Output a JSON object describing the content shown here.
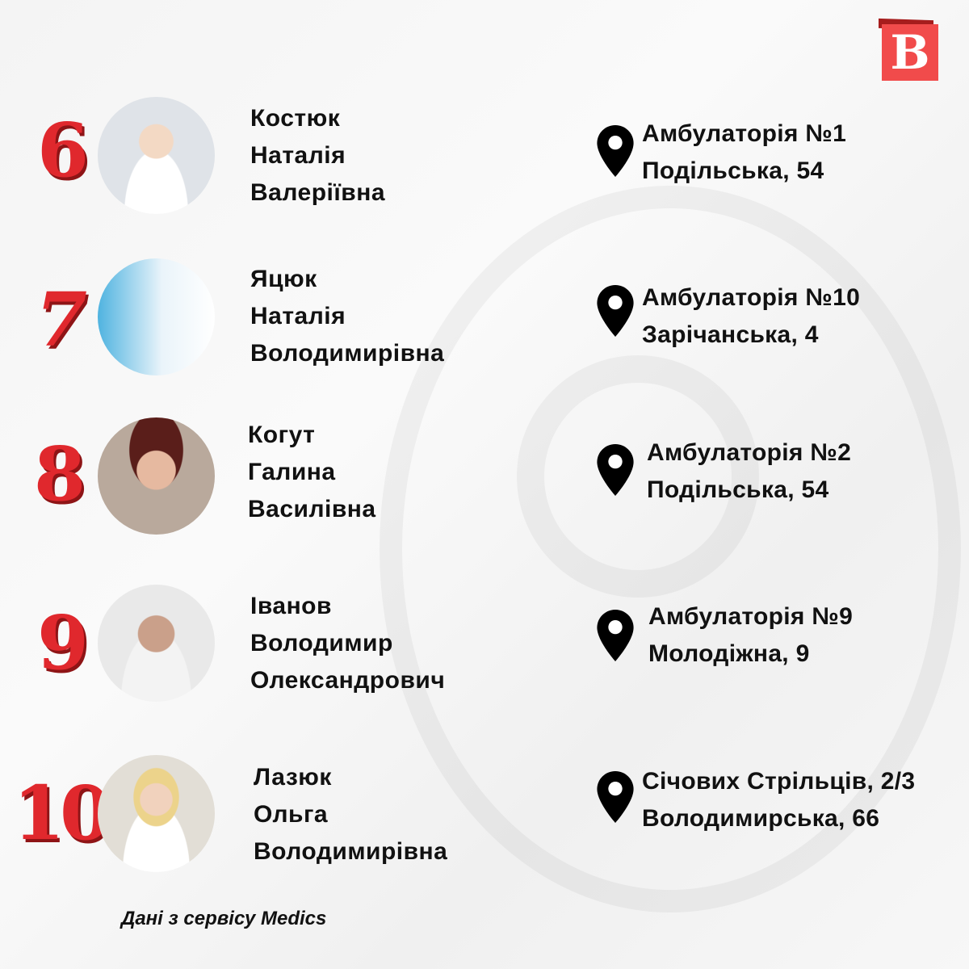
{
  "logo": {
    "letter": "B",
    "colors": {
      "front": "#f14b4b",
      "back": "#a61d1d"
    }
  },
  "accent_color": "#e0282d",
  "doctors": [
    {
      "rank": "6",
      "name": [
        "Костюк",
        "Наталія",
        "Валеріївна"
      ],
      "address": [
        "Амбулаторія №1",
        "Подільська, 54"
      ]
    },
    {
      "rank": "7",
      "name": [
        "Яцюк",
        "Наталія",
        "Володимирівна"
      ],
      "address": [
        "Амбулаторія №10",
        "Зарічанська, 4"
      ]
    },
    {
      "rank": "8",
      "name": [
        "Когут",
        "Галина",
        "Василівна"
      ],
      "address": [
        "Амбулаторія №2",
        "Подільська, 54"
      ]
    },
    {
      "rank": "9",
      "name": [
        "Іванов",
        "Володимир",
        "Олександрович"
      ],
      "address": [
        "Амбулаторія №9",
        "Молодіжна, 9"
      ]
    },
    {
      "rank": "10",
      "name": [
        "Лазюк",
        "Ольга",
        "Володимирівна"
      ],
      "address": [
        "Січових Стрільців, 2/3",
        "Володимирська, 66"
      ]
    }
  ],
  "footer": "Дані з сервісу Medics"
}
